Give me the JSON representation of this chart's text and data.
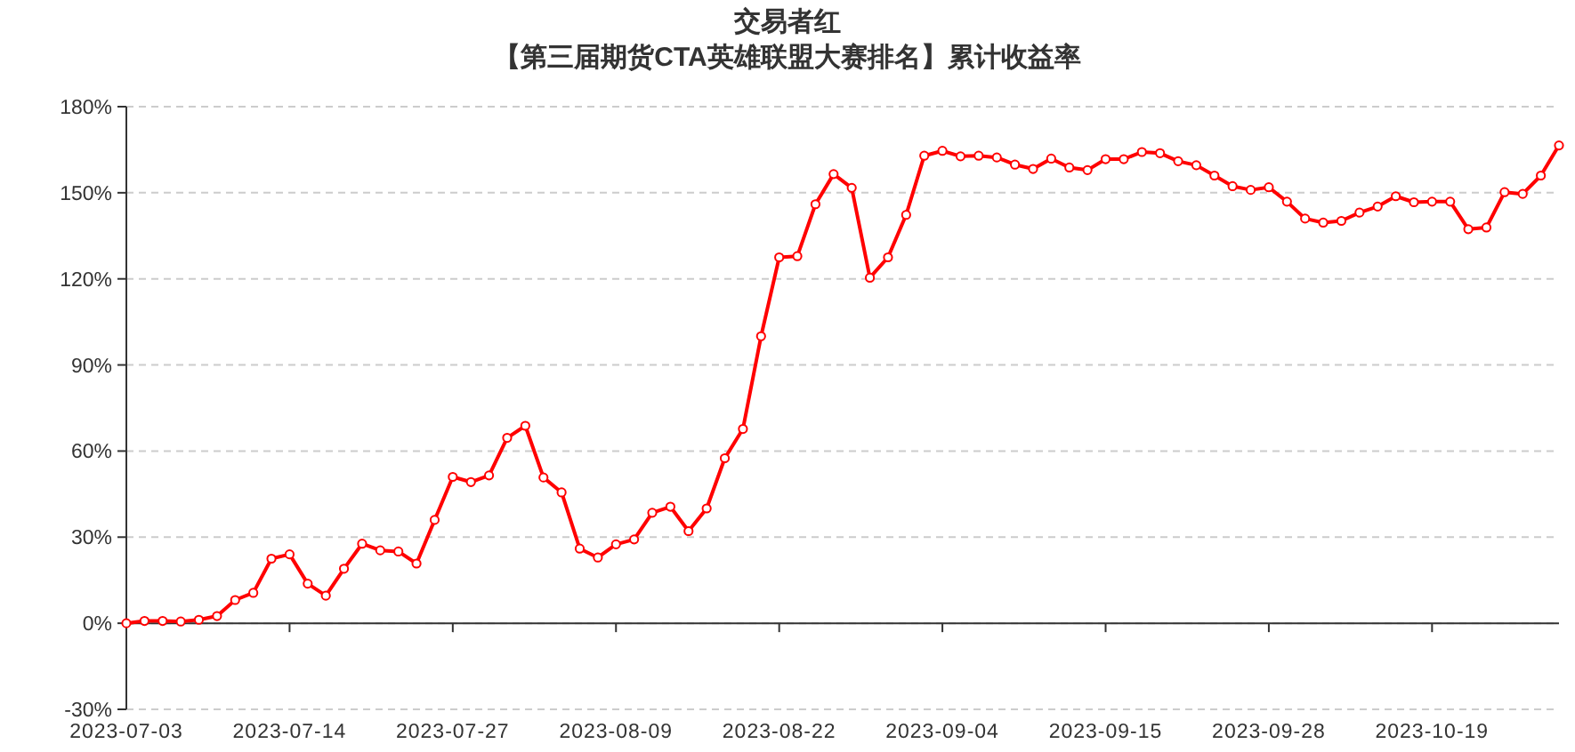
{
  "chart_data": {
    "type": "line",
    "title": "交易者红",
    "subtitle": "【第三届期货CTA英雄联盟大赛排名】累计收益率",
    "categories": [
      "2023-07-03",
      null,
      null,
      null,
      null,
      null,
      null,
      null,
      null,
      "2023-07-14",
      null,
      null,
      null,
      null,
      null,
      null,
      null,
      null,
      "2023-07-27",
      null,
      null,
      null,
      null,
      null,
      null,
      null,
      null,
      "2023-08-09",
      null,
      null,
      null,
      null,
      null,
      null,
      null,
      null,
      "2023-08-22",
      null,
      null,
      null,
      null,
      null,
      null,
      null,
      null,
      "2023-09-04",
      null,
      null,
      null,
      null,
      null,
      null,
      null,
      null,
      "2023-09-15",
      null,
      null,
      null,
      null,
      null,
      null,
      null,
      null,
      "2023-09-28",
      null,
      null,
      null,
      null,
      null,
      null,
      null,
      null,
      "2023-10-19",
      null,
      null,
      null,
      null,
      null,
      null,
      null
    ],
    "series": [
      {
        "color": "#ff0000",
        "values": [
          0,
          0.8,
          0.8,
          0.6,
          1.2,
          2.5,
          8.1,
          10.6,
          22.5,
          24.0,
          13.8,
          9.6,
          19.0,
          27.7,
          25.4,
          25.0,
          20.8,
          36.0,
          51.0,
          49.2,
          51.5,
          64.6,
          68.8,
          50.8,
          45.6,
          26.0,
          22.9,
          27.5,
          29.2,
          38.5,
          40.6,
          32.1,
          40.0,
          57.5,
          67.7,
          100.0,
          127.5,
          127.9,
          146.0,
          156.5,
          151.7,
          120.4,
          127.5,
          142.3,
          162.9,
          164.6,
          162.7,
          162.9,
          162.3,
          159.8,
          158.3,
          161.9,
          158.8,
          157.9,
          161.7,
          161.7,
          164.2,
          163.8,
          161.0,
          159.6,
          156.0,
          152.3,
          151.0,
          151.9,
          146.9,
          141.0,
          139.6,
          140.2,
          143.1,
          145.2,
          148.8,
          146.7,
          146.9,
          146.9,
          137.3,
          137.9,
          150.2,
          149.6,
          156.0,
          166.5
        ]
      }
    ],
    "ylim": [
      -30,
      180
    ],
    "yticks": [
      {
        "value": -30,
        "label": "-30%"
      },
      {
        "value": 0,
        "label": "0%"
      },
      {
        "value": 30,
        "label": "30%"
      },
      {
        "value": 60,
        "label": "60%"
      },
      {
        "value": 90,
        "label": "90%"
      },
      {
        "value": 120,
        "label": "120%"
      },
      {
        "value": 150,
        "label": "150%"
      },
      {
        "value": 180,
        "label": "180%"
      }
    ],
    "grid": "y",
    "marker": "circle"
  }
}
